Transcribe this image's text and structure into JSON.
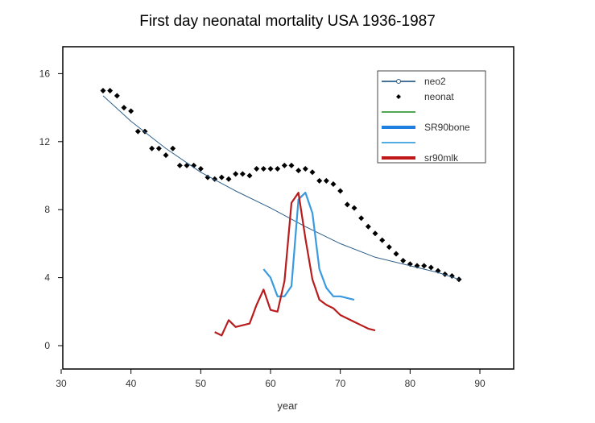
{
  "chart_data": {
    "type": "line",
    "title": "First day neonatal mortality USA 1936-1987",
    "xlabel": "year",
    "ylabel": "",
    "xlim": [
      30,
      95
    ],
    "ylim": [
      -1.5,
      17.5
    ],
    "xticks": [
      30,
      40,
      50,
      60,
      70,
      80,
      90
    ],
    "yticks": [
      0,
      4,
      8,
      12,
      16
    ],
    "grid": false,
    "legend_position": "top-right",
    "legend": [
      {
        "label": "neo2",
        "color": "#2e5f8a",
        "style": "line-circle"
      },
      {
        "label": "neonat",
        "color": "#000000",
        "style": "point"
      },
      {
        "label": "",
        "color": "#3a9a3a",
        "style": "line"
      },
      {
        "label": "SR90bone",
        "color": "#1e7fe0",
        "style": "thick-line"
      },
      {
        "label": "",
        "color": "#3aa0e0",
        "style": "line"
      },
      {
        "label": "sr90mlk",
        "color": "#c01818",
        "style": "thick-line"
      }
    ],
    "series": [
      {
        "name": "neonat",
        "type": "scatter",
        "color": "#000000",
        "x": [
          36,
          37,
          38,
          39,
          40,
          41,
          42,
          43,
          44,
          45,
          46,
          47,
          48,
          49,
          50,
          51,
          52,
          53,
          54,
          55,
          56,
          57,
          58,
          59,
          60,
          61,
          62,
          63,
          64,
          65,
          66,
          67,
          68,
          69,
          70,
          71,
          72,
          73,
          74,
          75,
          76,
          77,
          78,
          79,
          80,
          81,
          82,
          83,
          84,
          85,
          86,
          87
        ],
        "y": [
          15.0,
          15.0,
          14.7,
          14.0,
          13.8,
          12.6,
          12.6,
          11.6,
          11.6,
          11.2,
          11.6,
          10.6,
          10.6,
          10.6,
          10.4,
          9.9,
          9.8,
          9.9,
          9.8,
          10.1,
          10.1,
          10.0,
          10.4,
          10.4,
          10.4,
          10.4,
          10.6,
          10.6,
          10.3,
          10.4,
          10.2,
          9.7,
          9.7,
          9.5,
          9.1,
          8.3,
          8.1,
          7.5,
          7.0,
          6.6,
          6.2,
          5.8,
          5.4,
          5.0,
          4.8,
          4.7,
          4.7,
          4.6,
          4.4,
          4.2,
          4.1,
          3.9
        ]
      },
      {
        "name": "neo2",
        "type": "line",
        "color": "#2e5f8a",
        "x": [
          36,
          40,
          45,
          50,
          55,
          60,
          65,
          70,
          75,
          80,
          84,
          87
        ],
        "y": [
          14.7,
          13.2,
          11.6,
          10.2,
          9.1,
          8.1,
          7.0,
          6.0,
          5.2,
          4.7,
          4.3,
          3.9
        ]
      },
      {
        "name": "SR90bone",
        "type": "line",
        "color": "#3a9ae0",
        "x": [
          59,
          60,
          61,
          62,
          63,
          64,
          65,
          66,
          67,
          68,
          69,
          70,
          71,
          72
        ],
        "y": [
          4.5,
          4.0,
          2.9,
          2.9,
          3.5,
          8.6,
          9.0,
          7.8,
          4.5,
          3.4,
          2.9,
          2.9,
          2.8,
          2.7
        ]
      },
      {
        "name": "sr90mlk",
        "type": "line",
        "color": "#b81c1c",
        "x": [
          52,
          53,
          54,
          55,
          56,
          57,
          58,
          59,
          60,
          61,
          62,
          63,
          64,
          65,
          66,
          67,
          68,
          69,
          70,
          71,
          72,
          73,
          74,
          75
        ],
        "y": [
          0.8,
          0.6,
          1.5,
          1.1,
          1.2,
          1.3,
          2.4,
          3.3,
          2.1,
          2.0,
          3.8,
          8.4,
          9.0,
          6.3,
          3.9,
          2.7,
          2.4,
          2.2,
          1.8,
          1.6,
          1.4,
          1.2,
          1.0,
          0.9
        ]
      }
    ]
  }
}
